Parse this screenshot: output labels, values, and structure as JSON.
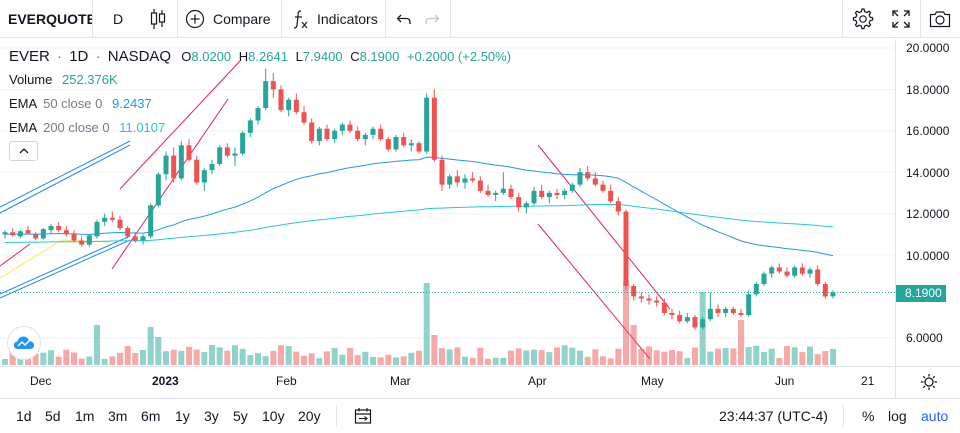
{
  "toolbar": {
    "symbol": "EVERQUOTE",
    "interval": "D",
    "compare_label": "Compare",
    "indicators_label": "Indicators"
  },
  "legend": {
    "ticker": "EVER",
    "interval": "1D",
    "exchange": "NASDAQ",
    "open_key": "O",
    "open": "8.0200",
    "high_key": "H",
    "high": "8.2641",
    "low_key": "L",
    "low": "7.9400",
    "close_key": "C",
    "close": "8.1900",
    "change": "+0.2000 (+2.50%)",
    "volume_label": "Volume",
    "volume_value": "252.376K",
    "ema50_label": "EMA",
    "ema50_params": "50 close 0",
    "ema50_value": "9.2437",
    "ema200_label": "EMA",
    "ema200_params": "200 close 0",
    "ema200_value": "11.0107"
  },
  "price_axis": {
    "labels": [
      "20.0000",
      "18.0000",
      "16.0000",
      "14.0000",
      "12.0000",
      "10.0000",
      "6.0000"
    ],
    "current": "8.1900"
  },
  "time_axis": {
    "labels": [
      "Dec",
      "2023",
      "Feb",
      "Mar",
      "Apr",
      "May",
      "Jun",
      "21"
    ]
  },
  "ranges": [
    "1d",
    "5d",
    "1m",
    "3m",
    "6m",
    "1y",
    "3y",
    "5y",
    "10y",
    "20y"
  ],
  "footer": {
    "time": "23:44:37 (UTC-4)",
    "percent": "%",
    "log": "log",
    "auto": "auto"
  },
  "colors": {
    "up": "#26a69a",
    "down": "#ef5350",
    "ema50": "#2196f3",
    "ema200": "#26c6da",
    "accent": "#2962ff"
  },
  "chart_data": {
    "type": "candlestick",
    "series": [
      {
        "name": "EVER",
        "values": [
          [
            11.0,
            11.2,
            10.8,
            11.1
          ],
          [
            11.1,
            11.3,
            10.9,
            10.95
          ],
          [
            10.9,
            11.2,
            10.8,
            11.15
          ],
          [
            11.2,
            11.4,
            11.0,
            11.05
          ],
          [
            11.0,
            11.1,
            10.7,
            10.8
          ],
          [
            10.8,
            11.3,
            10.75,
            11.25
          ],
          [
            11.2,
            11.5,
            11.0,
            11.4
          ],
          [
            11.4,
            11.6,
            11.1,
            11.2
          ],
          [
            11.2,
            11.4,
            10.9,
            11.0
          ],
          [
            11.0,
            11.2,
            10.6,
            10.7
          ],
          [
            10.7,
            10.9,
            10.4,
            10.5
          ],
          [
            10.5,
            11.0,
            10.4,
            10.95
          ],
          [
            10.9,
            11.7,
            10.8,
            11.6
          ],
          [
            11.6,
            12.0,
            11.4,
            11.8
          ],
          [
            11.8,
            12.1,
            11.6,
            11.7
          ],
          [
            11.7,
            11.9,
            11.2,
            11.3
          ],
          [
            11.3,
            11.4,
            10.8,
            10.9
          ],
          [
            10.9,
            11.1,
            10.6,
            10.7
          ],
          [
            10.7,
            11.0,
            10.5,
            10.9
          ],
          [
            10.9,
            12.5,
            10.8,
            12.4
          ],
          [
            12.4,
            14.0,
            12.3,
            13.9
          ],
          [
            13.9,
            15.0,
            13.6,
            14.8
          ],
          [
            14.8,
            15.2,
            13.5,
            13.7
          ],
          [
            13.7,
            15.5,
            13.6,
            15.3
          ],
          [
            15.3,
            15.6,
            14.5,
            14.6
          ],
          [
            14.6,
            14.8,
            13.4,
            13.5
          ],
          [
            13.5,
            14.2,
            13.1,
            14.1
          ],
          [
            14.1,
            14.6,
            13.9,
            14.4
          ],
          [
            14.4,
            15.3,
            14.3,
            15.2
          ],
          [
            15.2,
            15.4,
            14.7,
            14.8
          ],
          [
            14.8,
            15.2,
            14.3,
            14.9
          ],
          [
            14.9,
            16.0,
            14.8,
            15.9
          ],
          [
            15.9,
            16.6,
            15.7,
            16.5
          ],
          [
            16.5,
            17.2,
            16.3,
            17.1
          ],
          [
            17.1,
            19.0,
            17.0,
            18.4
          ],
          [
            18.4,
            18.8,
            17.6,
            18.0
          ],
          [
            18.0,
            18.2,
            16.9,
            17.0
          ],
          [
            17.0,
            17.6,
            16.7,
            17.5
          ],
          [
            17.5,
            17.8,
            16.8,
            16.9
          ],
          [
            16.9,
            17.2,
            16.3,
            16.4
          ],
          [
            16.4,
            16.6,
            15.4,
            15.5
          ],
          [
            15.5,
            16.2,
            15.3,
            16.1
          ],
          [
            16.1,
            16.3,
            15.5,
            15.6
          ],
          [
            15.6,
            16.1,
            15.4,
            16.0
          ],
          [
            16.0,
            16.4,
            15.8,
            16.3
          ],
          [
            16.3,
            16.5,
            15.9,
            16.0
          ],
          [
            16.0,
            16.2,
            15.5,
            15.6
          ],
          [
            15.6,
            15.9,
            15.3,
            15.8
          ],
          [
            15.8,
            16.2,
            15.6,
            16.1
          ],
          [
            16.1,
            16.3,
            15.5,
            15.6
          ],
          [
            15.6,
            15.7,
            15.0,
            15.1
          ],
          [
            15.1,
            15.8,
            15.0,
            15.7
          ],
          [
            15.7,
            15.9,
            15.2,
            15.3
          ],
          [
            15.3,
            15.6,
            15.0,
            15.4
          ],
          [
            15.4,
            15.5,
            14.9,
            15.0
          ],
          [
            15.0,
            17.8,
            14.9,
            17.6
          ],
          [
            17.6,
            18.0,
            14.5,
            14.6
          ],
          [
            14.6,
            14.8,
            13.1,
            13.4
          ],
          [
            13.4,
            13.9,
            13.2,
            13.8
          ],
          [
            13.8,
            14.1,
            13.3,
            13.5
          ],
          [
            13.5,
            13.9,
            13.2,
            13.7
          ],
          [
            13.7,
            14.0,
            13.5,
            13.6
          ],
          [
            13.6,
            13.8,
            13.0,
            13.1
          ],
          [
            13.1,
            13.4,
            12.8,
            12.9
          ],
          [
            12.9,
            13.1,
            12.6,
            13.0
          ],
          [
            13.0,
            14.0,
            12.9,
            13.2
          ],
          [
            13.2,
            13.4,
            12.7,
            12.8
          ],
          [
            12.8,
            13.0,
            12.1,
            12.3
          ],
          [
            12.3,
            12.6,
            12.0,
            12.5
          ],
          [
            12.5,
            13.3,
            12.4,
            13.1
          ],
          [
            13.1,
            13.4,
            12.7,
            12.8
          ],
          [
            12.8,
            13.1,
            12.5,
            13.0
          ],
          [
            13.0,
            13.2,
            12.7,
            12.9
          ],
          [
            12.9,
            13.2,
            12.7,
            13.1
          ],
          [
            13.1,
            13.5,
            13.0,
            13.4
          ],
          [
            13.4,
            14.2,
            13.3,
            14.0
          ],
          [
            14.0,
            14.3,
            13.6,
            13.7
          ],
          [
            13.7,
            14.0,
            13.3,
            13.4
          ],
          [
            13.4,
            13.6,
            13.0,
            13.1
          ],
          [
            13.1,
            13.4,
            12.5,
            12.6
          ],
          [
            12.6,
            12.8,
            11.9,
            12.1
          ],
          [
            12.1,
            12.2,
            8.3,
            8.5
          ],
          [
            8.5,
            8.6,
            7.8,
            8.0
          ],
          [
            8.0,
            8.2,
            7.7,
            7.9
          ],
          [
            7.9,
            8.1,
            7.6,
            7.8
          ],
          [
            7.8,
            8.0,
            7.5,
            7.7
          ],
          [
            7.7,
            7.9,
            7.1,
            7.2
          ],
          [
            7.2,
            7.4,
            6.9,
            7.1
          ],
          [
            7.1,
            7.3,
            6.7,
            6.8
          ],
          [
            6.8,
            7.2,
            6.7,
            7.0
          ],
          [
            7.0,
            7.1,
            6.4,
            6.5
          ],
          [
            6.5,
            7.0,
            6.4,
            6.9
          ],
          [
            6.9,
            8.2,
            6.8,
            7.4
          ],
          [
            7.4,
            7.6,
            7.0,
            7.2
          ],
          [
            7.2,
            7.5,
            7.0,
            7.4
          ],
          [
            7.4,
            7.5,
            7.1,
            7.2
          ],
          [
            7.2,
            7.4,
            7.0,
            7.1
          ],
          [
            7.1,
            8.3,
            7.0,
            8.1
          ],
          [
            8.1,
            8.7,
            8.0,
            8.6
          ],
          [
            8.6,
            9.2,
            8.5,
            9.1
          ],
          [
            9.1,
            9.5,
            8.9,
            9.4
          ],
          [
            9.4,
            9.6,
            9.1,
            9.2
          ],
          [
            9.2,
            9.4,
            8.9,
            9.0
          ],
          [
            9.0,
            9.5,
            8.9,
            9.4
          ],
          [
            9.4,
            9.6,
            9.0,
            9.1
          ],
          [
            9.1,
            9.4,
            8.9,
            9.3
          ],
          [
            9.3,
            9.5,
            8.5,
            8.6
          ],
          [
            8.6,
            8.7,
            7.9,
            8.0
          ],
          [
            8.0,
            8.3,
            7.9,
            8.19
          ]
        ]
      }
    ],
    "ema50_last": 9.2437,
    "ema200_last": 11.0107,
    "ylim": [
      4.6,
      20.4
    ],
    "yticks": [
      20,
      18,
      16,
      14,
      12,
      10,
      6
    ]
  }
}
